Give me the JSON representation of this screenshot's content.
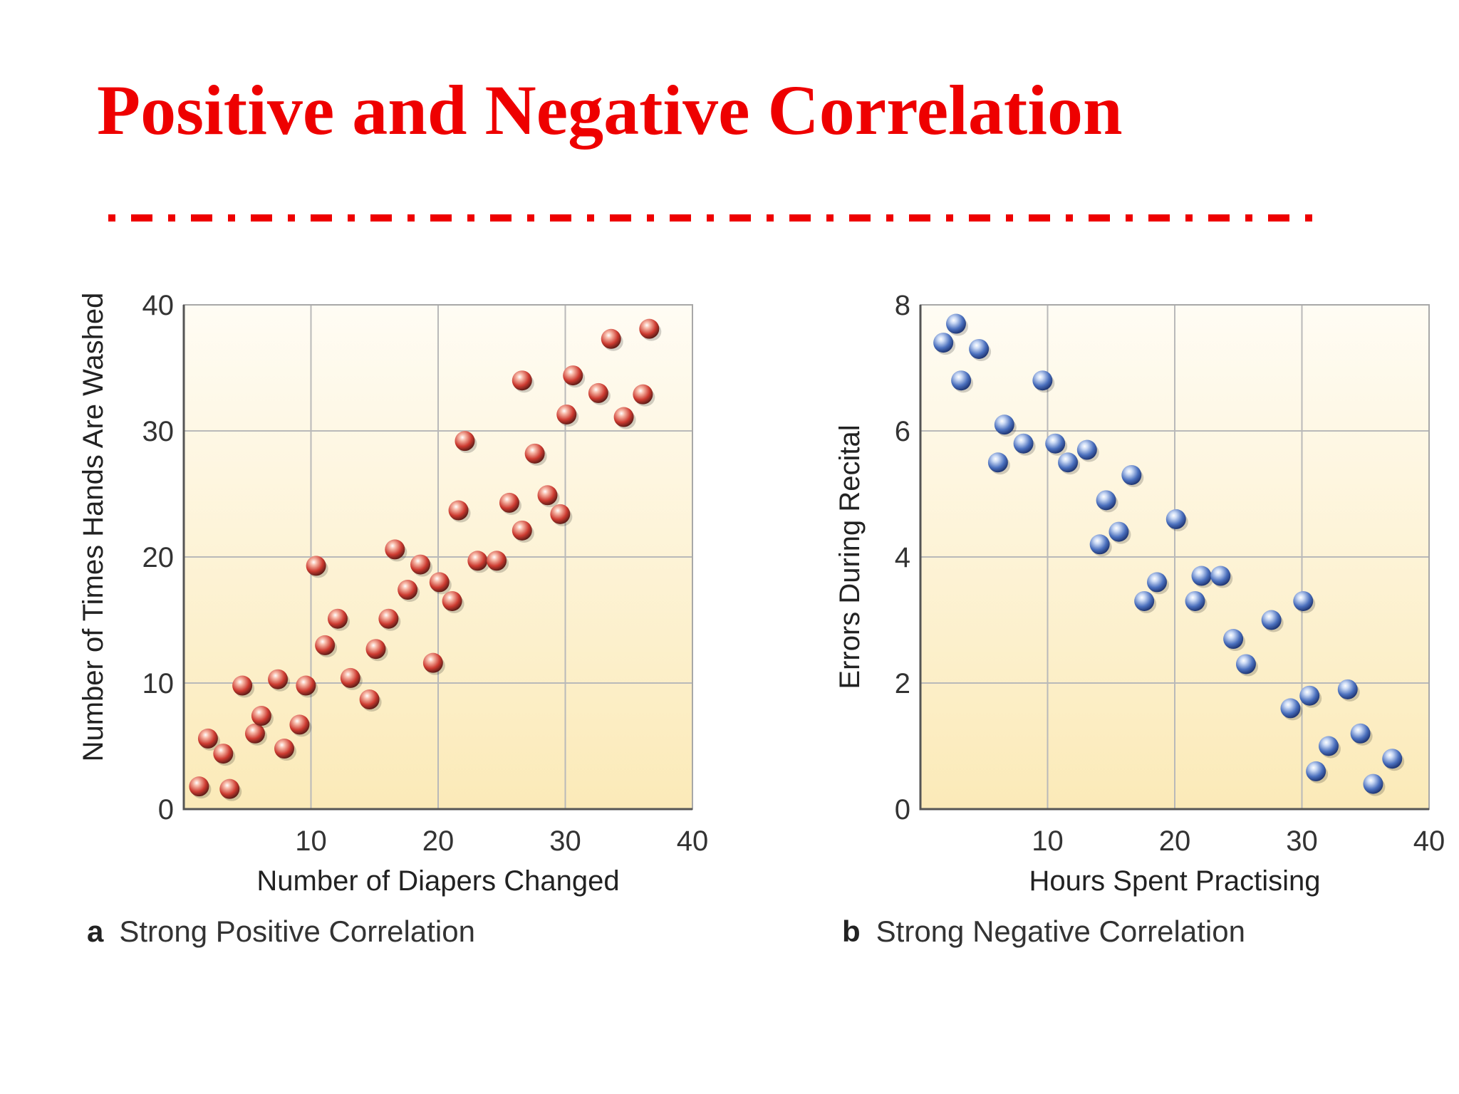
{
  "slide": {
    "title": "Positive and Negative Correlation",
    "title_color": "#ee0000",
    "rule_color": "#ee0000"
  },
  "chart_data": [
    {
      "type": "scatter",
      "title": "",
      "caption_letter": "a",
      "caption": "Strong Positive Correlation",
      "xlabel": "Number of Diapers Changed",
      "ylabel": "Number of Times Hands Are Washed",
      "xlim": [
        0,
        40
      ],
      "ylim": [
        0,
        40
      ],
      "xticks": [
        10,
        20,
        30,
        40
      ],
      "yticks": [
        0,
        10,
        20,
        30,
        40
      ],
      "grid": true,
      "marker_color": "#cc3a30",
      "marker_highlight": "#f7b9a8",
      "background_top": "#fffcf4",
      "background_bottom": "#fbeab8",
      "series": [
        {
          "points": [
            [
              1.2,
              1.8
            ],
            [
              1.9,
              5.6
            ],
            [
              3.1,
              4.4
            ],
            [
              3.6,
              1.6
            ],
            [
              4.6,
              9.8
            ],
            [
              5.6,
              6.0
            ],
            [
              6.1,
              7.4
            ],
            [
              7.4,
              10.3
            ],
            [
              7.9,
              4.8
            ],
            [
              9.1,
              6.7
            ],
            [
              9.6,
              9.8
            ],
            [
              10.4,
              19.3
            ],
            [
              11.1,
              13.0
            ],
            [
              12.1,
              15.1
            ],
            [
              13.1,
              10.4
            ],
            [
              14.6,
              8.7
            ],
            [
              15.1,
              12.7
            ],
            [
              16.1,
              15.1
            ],
            [
              16.6,
              20.6
            ],
            [
              17.6,
              17.4
            ],
            [
              18.6,
              19.4
            ],
            [
              19.6,
              11.6
            ],
            [
              20.1,
              18.0
            ],
            [
              21.1,
              16.5
            ],
            [
              21.6,
              23.7
            ],
            [
              22.1,
              29.2
            ],
            [
              23.1,
              19.7
            ],
            [
              24.6,
              19.7
            ],
            [
              25.6,
              24.3
            ],
            [
              26.6,
              22.1
            ],
            [
              26.6,
              34.0
            ],
            [
              27.6,
              28.2
            ],
            [
              28.6,
              24.9
            ],
            [
              29.6,
              23.4
            ],
            [
              30.1,
              31.3
            ],
            [
              30.6,
              34.4
            ],
            [
              32.6,
              33.0
            ],
            [
              33.6,
              37.3
            ],
            [
              34.6,
              31.1
            ],
            [
              36.1,
              32.9
            ],
            [
              36.6,
              38.1
            ]
          ]
        }
      ]
    },
    {
      "type": "scatter",
      "title": "",
      "caption_letter": "b",
      "caption": "Strong Negative Correlation",
      "xlabel": "Hours Spent Practising",
      "ylabel": "Errors During Recital",
      "xlim": [
        0,
        40
      ],
      "ylim": [
        0,
        8
      ],
      "xticks": [
        10,
        20,
        30,
        40
      ],
      "yticks": [
        0,
        2,
        4,
        6,
        8
      ],
      "grid": true,
      "marker_color": "#4a6fbd",
      "marker_highlight": "#cbdaf5",
      "background_top": "#fffcf4",
      "background_bottom": "#fbeab8",
      "series": [
        {
          "points": [
            [
              1.8,
              7.4
            ],
            [
              2.8,
              7.7
            ],
            [
              3.2,
              6.8
            ],
            [
              4.6,
              7.3
            ],
            [
              6.1,
              5.5
            ],
            [
              6.6,
              6.1
            ],
            [
              8.1,
              5.8
            ],
            [
              9.6,
              6.8
            ],
            [
              10.6,
              5.8
            ],
            [
              11.6,
              5.5
            ],
            [
              13.1,
              5.7
            ],
            [
              14.1,
              4.2
            ],
            [
              14.6,
              4.9
            ],
            [
              15.6,
              4.4
            ],
            [
              16.6,
              5.3
            ],
            [
              17.6,
              3.3
            ],
            [
              18.6,
              3.6
            ],
            [
              20.1,
              4.6
            ],
            [
              21.6,
              3.3
            ],
            [
              22.1,
              3.7
            ],
            [
              23.6,
              3.7
            ],
            [
              24.6,
              2.7
            ],
            [
              25.6,
              2.3
            ],
            [
              27.6,
              3.0
            ],
            [
              29.1,
              1.6
            ],
            [
              30.1,
              3.3
            ],
            [
              30.6,
              1.8
            ],
            [
              31.1,
              0.6
            ],
            [
              32.1,
              1.0
            ],
            [
              33.6,
              1.9
            ],
            [
              34.6,
              1.2
            ],
            [
              35.6,
              0.4
            ],
            [
              37.1,
              0.8
            ]
          ]
        }
      ]
    }
  ]
}
